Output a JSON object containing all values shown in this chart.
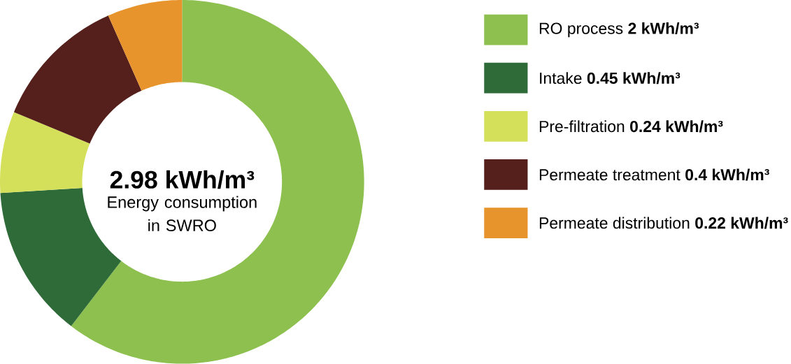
{
  "chart_data": {
    "type": "donut",
    "title": "2.98 kWh/m³",
    "subtitle": "Energy consumption in SWRO",
    "categories": [
      "RO process **2 kWh/m³**",
      "Intake **0.45 kWh/m³**",
      "Pre-filtration **0.24 kWh/m³**",
      "Permeate treatment **0.4 kWh/m³**",
      "Permeate distribution **0.22 kWh/m³**"
    ],
    "values": [
      2,
      0.45,
      0.24,
      0.4,
      0.22
    ],
    "colors": [
      "#8dc04f",
      "#2e6b38",
      "#d4e05a",
      "#55201c",
      "#e8942d"
    ],
    "legend": "right"
  }
}
